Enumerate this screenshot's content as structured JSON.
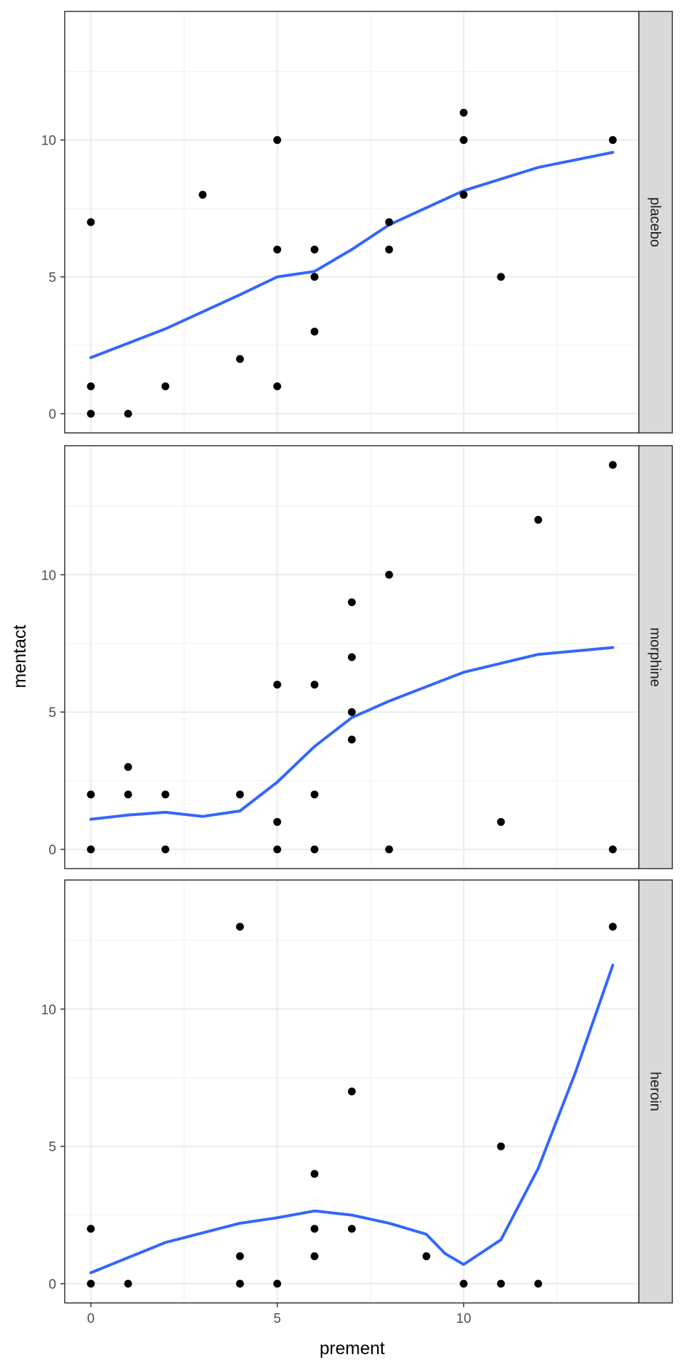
{
  "chart_data": {
    "type": "scatter",
    "xlabel": "prement",
    "ylabel": "mentact",
    "xlim": [
      -0.7,
      14.7
    ],
    "ylim": [
      -0.7,
      14.7
    ],
    "x_ticks": [
      0,
      5,
      10
    ],
    "y_ticks": [
      0,
      5,
      10
    ],
    "grid": true,
    "colors": {
      "points": "#000000",
      "smooth": "#3366ff",
      "strip_bg": "#d9d9d9",
      "panel_border": "#333333",
      "grid": "#ebebeb"
    },
    "panels": [
      {
        "label": "placebo",
        "points": [
          [
            0,
            7
          ],
          [
            0,
            1
          ],
          [
            0,
            0
          ],
          [
            1,
            0
          ],
          [
            2,
            1
          ],
          [
            3,
            8
          ],
          [
            4,
            2
          ],
          [
            5,
            10
          ],
          [
            5,
            6
          ],
          [
            5,
            1
          ],
          [
            6,
            6
          ],
          [
            6,
            5
          ],
          [
            6,
            3
          ],
          [
            8,
            7
          ],
          [
            8,
            6
          ],
          [
            10,
            11
          ],
          [
            10,
            10
          ],
          [
            10,
            8
          ],
          [
            11,
            5
          ],
          [
            14,
            10
          ]
        ],
        "smooth": [
          [
            0,
            2.05
          ],
          [
            2,
            3.1
          ],
          [
            4,
            4.35
          ],
          [
            5,
            5.0
          ],
          [
            6,
            5.2
          ],
          [
            7,
            6.0
          ],
          [
            8,
            6.9
          ],
          [
            10,
            8.15
          ],
          [
            12,
            9.0
          ],
          [
            14,
            9.55
          ]
        ]
      },
      {
        "label": "morphine",
        "points": [
          [
            0,
            2
          ],
          [
            0,
            0
          ],
          [
            1,
            3
          ],
          [
            1,
            2
          ],
          [
            2,
            2
          ],
          [
            2,
            0
          ],
          [
            4,
            2
          ],
          [
            5,
            6
          ],
          [
            5,
            1
          ],
          [
            5,
            0
          ],
          [
            6,
            6
          ],
          [
            6,
            2
          ],
          [
            6,
            0
          ],
          [
            7,
            9
          ],
          [
            7,
            7
          ],
          [
            7,
            5
          ],
          [
            7,
            4
          ],
          [
            8,
            10
          ],
          [
            8,
            0
          ],
          [
            11,
            1
          ],
          [
            12,
            12
          ],
          [
            14,
            14
          ],
          [
            14,
            0
          ]
        ],
        "smooth": [
          [
            0,
            1.1
          ],
          [
            1,
            1.25
          ],
          [
            2,
            1.35
          ],
          [
            3,
            1.2
          ],
          [
            4,
            1.4
          ],
          [
            5,
            2.45
          ],
          [
            6,
            3.75
          ],
          [
            7,
            4.8
          ],
          [
            8,
            5.4
          ],
          [
            10,
            6.45
          ],
          [
            12,
            7.1
          ],
          [
            14,
            7.35
          ]
        ]
      },
      {
        "label": "heroin",
        "points": [
          [
            0,
            2
          ],
          [
            0,
            0
          ],
          [
            1,
            0
          ],
          [
            4,
            13
          ],
          [
            4,
            1
          ],
          [
            4,
            0
          ],
          [
            5,
            0
          ],
          [
            6,
            4
          ],
          [
            6,
            2
          ],
          [
            6,
            1
          ],
          [
            7,
            7
          ],
          [
            7,
            2
          ],
          [
            9,
            1
          ],
          [
            10,
            0
          ],
          [
            11,
            5
          ],
          [
            11,
            0
          ],
          [
            12,
            0
          ],
          [
            14,
            13
          ]
        ],
        "smooth": [
          [
            0,
            0.4
          ],
          [
            2,
            1.5
          ],
          [
            4,
            2.2
          ],
          [
            5,
            2.4
          ],
          [
            6,
            2.65
          ],
          [
            7,
            2.5
          ],
          [
            8,
            2.2
          ],
          [
            9,
            1.8
          ],
          [
            9.5,
            1.1
          ],
          [
            10,
            0.7
          ],
          [
            11,
            1.6
          ],
          [
            12,
            4.2
          ],
          [
            13,
            7.7
          ],
          [
            14,
            11.6
          ]
        ]
      }
    ]
  }
}
